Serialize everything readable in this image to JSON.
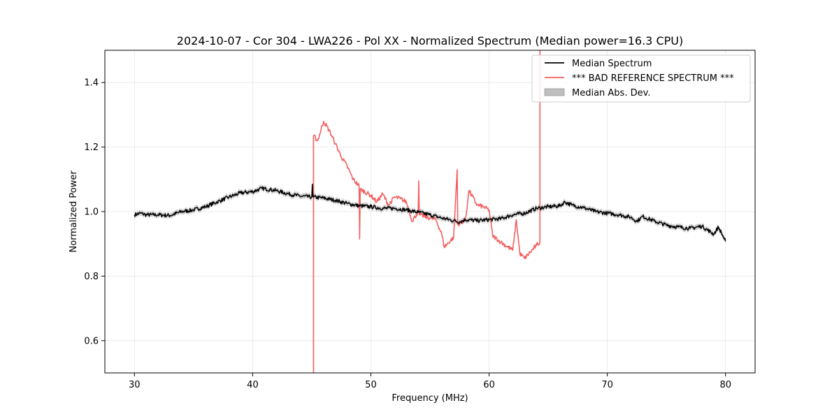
{
  "chart_data": {
    "type": "line",
    "title": "2024-10-07 - Cor 304 - LWA226 - Pol XX - Normalized Spectrum (Median power=16.3 CPU)",
    "xlabel": "Frequency (MHz)",
    "ylabel": "Normalized Power",
    "xlim": [
      27.5,
      82.5
    ],
    "ylim": [
      0.5,
      1.5
    ],
    "xticks": [
      30,
      40,
      50,
      60,
      70,
      80
    ],
    "xtick_labels": [
      "30",
      "40",
      "50",
      "60",
      "70",
      "80"
    ],
    "yticks": [
      0.6,
      0.8,
      1.0,
      1.2,
      1.4
    ],
    "ytick_labels": [
      "0.6",
      "0.8",
      "1.0",
      "1.2",
      "1.4"
    ],
    "grid": true,
    "legend_position": "top-right",
    "colors": {
      "median": "#000000",
      "bad_reference": "#f26060",
      "mad_fill": "#bfbfbf"
    },
    "series": [
      {
        "name": "Median Spectrum",
        "points": [
          [
            30,
            0.99
          ],
          [
            30.5,
            0.995
          ],
          [
            31,
            0.99
          ],
          [
            32,
            0.99
          ],
          [
            33,
            0.988
          ],
          [
            34,
            1.0
          ],
          [
            35,
            1.005
          ],
          [
            36,
            1.015
          ],
          [
            37,
            1.03
          ],
          [
            38,
            1.045
          ],
          [
            39,
            1.058
          ],
          [
            40,
            1.062
          ],
          [
            40.8,
            1.072
          ],
          [
            41.5,
            1.068
          ],
          [
            42,
            1.065
          ],
          [
            43,
            1.055
          ],
          [
            44,
            1.048
          ],
          [
            45,
            1.045
          ],
          [
            45.05,
            1.085
          ],
          [
            45.1,
            1.045
          ],
          [
            46,
            1.042
          ],
          [
            47,
            1.035
          ],
          [
            48,
            1.025
          ],
          [
            49,
            1.018
          ],
          [
            50,
            1.015
          ],
          [
            51,
            1.01
          ],
          [
            52,
            1.01
          ],
          [
            53,
            1.005
          ],
          [
            54,
            0.998
          ],
          [
            55,
            0.99
          ],
          [
            56,
            0.98
          ],
          [
            57,
            0.972
          ],
          [
            57.5,
            0.968
          ],
          [
            58,
            0.975
          ],
          [
            59,
            0.972
          ],
          [
            60,
            0.975
          ],
          [
            61,
            0.978
          ],
          [
            62,
            0.99
          ],
          [
            63,
            0.995
          ],
          [
            64,
            1.01
          ],
          [
            65,
            1.015
          ],
          [
            66,
            1.018
          ],
          [
            66.4,
            1.03
          ],
          [
            67,
            1.02
          ],
          [
            68,
            1.012
          ],
          [
            69,
            1.0
          ],
          [
            70,
            0.995
          ],
          [
            71,
            0.99
          ],
          [
            72,
            0.982
          ],
          [
            72.5,
            0.97
          ],
          [
            73,
            0.985
          ],
          [
            74,
            0.97
          ],
          [
            75,
            0.958
          ],
          [
            76,
            0.952
          ],
          [
            77,
            0.948
          ],
          [
            78,
            0.955
          ],
          [
            79,
            0.93
          ],
          [
            79.4,
            0.952
          ],
          [
            80,
            0.908
          ]
        ]
      },
      {
        "name": "*** BAD REFERENCE SPECTRUM ***",
        "points": [
          [
            45.15,
            0.5
          ],
          [
            45.15,
            1.235
          ],
          [
            45.5,
            1.22
          ],
          [
            46,
            1.28
          ],
          [
            46.5,
            1.25
          ],
          [
            47,
            1.21
          ],
          [
            47.5,
            1.17
          ],
          [
            48,
            1.14
          ],
          [
            48.5,
            1.1
          ],
          [
            49,
            1.08
          ],
          [
            49.05,
            0.915
          ],
          [
            49.1,
            1.07
          ],
          [
            50,
            1.05
          ],
          [
            50.5,
            1.03
          ],
          [
            51,
            1.055
          ],
          [
            51.5,
            1.02
          ],
          [
            52,
            1.045
          ],
          [
            52.5,
            1.04
          ],
          [
            53,
            1.03
          ],
          [
            53.5,
            0.97
          ],
          [
            54,
            1.0
          ],
          [
            54.05,
            1.095
          ],
          [
            54.1,
            0.99
          ],
          [
            55,
            0.98
          ],
          [
            55.5,
            0.975
          ],
          [
            56,
            0.93
          ],
          [
            56.2,
            0.89
          ],
          [
            57,
            0.92
          ],
          [
            57.3,
            1.13
          ],
          [
            57.35,
            0.96
          ],
          [
            58,
            0.975
          ],
          [
            58.3,
            1.065
          ],
          [
            59,
            1.02
          ],
          [
            59.5,
            1.015
          ],
          [
            60,
            1.005
          ],
          [
            60.3,
            0.925
          ],
          [
            61,
            0.905
          ],
          [
            62,
            0.88
          ],
          [
            62.3,
            0.975
          ],
          [
            62.6,
            0.87
          ],
          [
            63,
            0.855
          ],
          [
            63.5,
            0.875
          ],
          [
            64,
            0.895
          ],
          [
            64.3,
            0.905
          ],
          [
            64.3,
            1.5
          ]
        ]
      }
    ],
    "mad_band_halfwidth": 0.008,
    "legend": [
      {
        "label": "Median Spectrum",
        "kind": "line",
        "color": "#000000"
      },
      {
        "label": "*** BAD REFERENCE SPECTRUM ***",
        "kind": "line",
        "color": "#f26060"
      },
      {
        "label": "Median Abs. Dev.",
        "kind": "patch",
        "color": "#bfbfbf"
      }
    ]
  }
}
